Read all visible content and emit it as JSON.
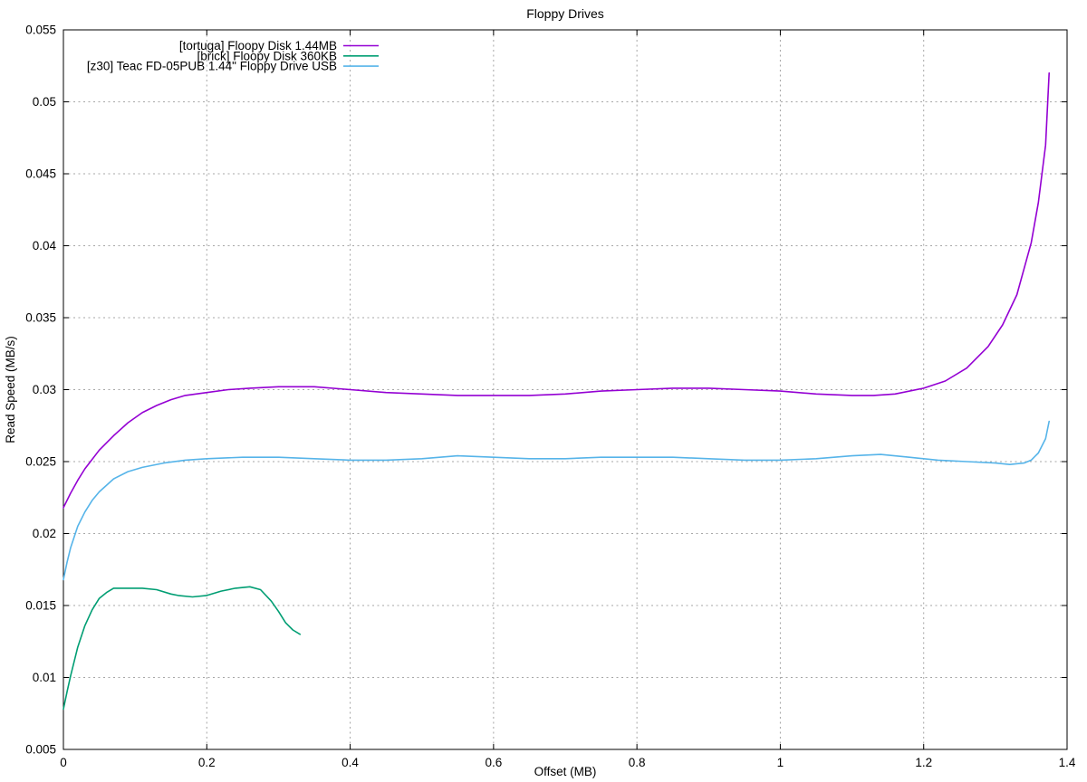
{
  "chart_data": {
    "type": "line",
    "title": "Floppy Drives",
    "xlabel": "Offset (MB)",
    "ylabel": "Read Speed (MB/s)",
    "xlim": [
      0,
      1.4
    ],
    "ylim": [
      0.005,
      0.055
    ],
    "grid": true,
    "legend_position": "inside-top-left, right-aligned text with line sample at right",
    "axis_color": "#000000",
    "grid_color": "#a6a6a6",
    "text_color": "#000000",
    "x_ticks": [
      {
        "v": 0,
        "label": "0"
      },
      {
        "v": 0.2,
        "label": "0.2"
      },
      {
        "v": 0.4,
        "label": "0.4"
      },
      {
        "v": 0.6,
        "label": "0.6"
      },
      {
        "v": 0.8,
        "label": "0.8"
      },
      {
        "v": 1,
        "label": "1"
      },
      {
        "v": 1.2,
        "label": "1.2"
      },
      {
        "v": 1.4,
        "label": "1.4"
      }
    ],
    "y_ticks": [
      {
        "v": 0.005,
        "label": "0.005"
      },
      {
        "v": 0.01,
        "label": "0.01"
      },
      {
        "v": 0.015,
        "label": "0.015"
      },
      {
        "v": 0.02,
        "label": "0.02"
      },
      {
        "v": 0.025,
        "label": "0.025"
      },
      {
        "v": 0.03,
        "label": "0.03"
      },
      {
        "v": 0.035,
        "label": "0.035"
      },
      {
        "v": 0.04,
        "label": "0.04"
      },
      {
        "v": 0.045,
        "label": "0.045"
      },
      {
        "v": 0.05,
        "label": "0.05"
      },
      {
        "v": 0.055,
        "label": "0.055"
      }
    ],
    "series": [
      {
        "id": "tortuga",
        "name": "[tortuga] Floopy Disk 1.44MB",
        "color": "#9400d3",
        "points": [
          [
            0,
            0.0218
          ],
          [
            0.01,
            0.0228
          ],
          [
            0.02,
            0.0237
          ],
          [
            0.03,
            0.0245
          ],
          [
            0.05,
            0.0258
          ],
          [
            0.07,
            0.0268
          ],
          [
            0.09,
            0.0277
          ],
          [
            0.11,
            0.0284
          ],
          [
            0.13,
            0.0289
          ],
          [
            0.15,
            0.0293
          ],
          [
            0.17,
            0.0296
          ],
          [
            0.2,
            0.0298
          ],
          [
            0.23,
            0.03
          ],
          [
            0.26,
            0.0301
          ],
          [
            0.3,
            0.0302
          ],
          [
            0.35,
            0.0302
          ],
          [
            0.4,
            0.03
          ],
          [
            0.45,
            0.0298
          ],
          [
            0.5,
            0.0297
          ],
          [
            0.55,
            0.0296
          ],
          [
            0.6,
            0.0296
          ],
          [
            0.65,
            0.0296
          ],
          [
            0.7,
            0.0297
          ],
          [
            0.75,
            0.0299
          ],
          [
            0.8,
            0.03
          ],
          [
            0.85,
            0.0301
          ],
          [
            0.9,
            0.0301
          ],
          [
            0.95,
            0.03
          ],
          [
            1,
            0.0299
          ],
          [
            1.05,
            0.0297
          ],
          [
            1.1,
            0.0296
          ],
          [
            1.13,
            0.0296
          ],
          [
            1.16,
            0.0297
          ],
          [
            1.2,
            0.0301
          ],
          [
            1.23,
            0.0306
          ],
          [
            1.26,
            0.0315
          ],
          [
            1.29,
            0.033
          ],
          [
            1.31,
            0.0345
          ],
          [
            1.33,
            0.0366
          ],
          [
            1.35,
            0.0402
          ],
          [
            1.36,
            0.043
          ],
          [
            1.37,
            0.047
          ],
          [
            1.375,
            0.052
          ]
        ]
      },
      {
        "id": "brick",
        "name": "[brick] Floopy Disk 360KB",
        "color": "#009e73",
        "points": [
          [
            0,
            0.0078
          ],
          [
            0.005,
            0.009
          ],
          [
            0.01,
            0.0101
          ],
          [
            0.02,
            0.0121
          ],
          [
            0.03,
            0.0136
          ],
          [
            0.04,
            0.0147
          ],
          [
            0.05,
            0.0155
          ],
          [
            0.06,
            0.0159
          ],
          [
            0.07,
            0.0162
          ],
          [
            0.09,
            0.0162
          ],
          [
            0.11,
            0.0162
          ],
          [
            0.13,
            0.0161
          ],
          [
            0.15,
            0.0158
          ],
          [
            0.16,
            0.0157
          ],
          [
            0.18,
            0.0156
          ],
          [
            0.2,
            0.0157
          ],
          [
            0.22,
            0.016
          ],
          [
            0.24,
            0.0162
          ],
          [
            0.26,
            0.0163
          ],
          [
            0.275,
            0.0161
          ],
          [
            0.29,
            0.0153
          ],
          [
            0.3,
            0.0146
          ],
          [
            0.31,
            0.0138
          ],
          [
            0.32,
            0.0133
          ],
          [
            0.33,
            0.013
          ]
        ]
      },
      {
        "id": "z30",
        "name": "[z30] Teac FD-05PUB 1.44\" Floppy Drive USB",
        "color": "#56b4e9",
        "points": [
          [
            0,
            0.0168
          ],
          [
            0.005,
            0.018
          ],
          [
            0.01,
            0.019
          ],
          [
            0.02,
            0.0205
          ],
          [
            0.03,
            0.0215
          ],
          [
            0.04,
            0.0223
          ],
          [
            0.05,
            0.0229
          ],
          [
            0.07,
            0.0238
          ],
          [
            0.09,
            0.0243
          ],
          [
            0.11,
            0.0246
          ],
          [
            0.14,
            0.0249
          ],
          [
            0.17,
            0.0251
          ],
          [
            0.2,
            0.0252
          ],
          [
            0.25,
            0.0253
          ],
          [
            0.3,
            0.0253
          ],
          [
            0.35,
            0.0252
          ],
          [
            0.4,
            0.0251
          ],
          [
            0.45,
            0.0251
          ],
          [
            0.5,
            0.0252
          ],
          [
            0.55,
            0.0254
          ],
          [
            0.6,
            0.0253
          ],
          [
            0.65,
            0.0252
          ],
          [
            0.7,
            0.0252
          ],
          [
            0.75,
            0.0253
          ],
          [
            0.8,
            0.0253
          ],
          [
            0.85,
            0.0253
          ],
          [
            0.9,
            0.0252
          ],
          [
            0.95,
            0.0251
          ],
          [
            1,
            0.0251
          ],
          [
            1.05,
            0.0252
          ],
          [
            1.1,
            0.0254
          ],
          [
            1.14,
            0.0255
          ],
          [
            1.18,
            0.0253
          ],
          [
            1.22,
            0.0251
          ],
          [
            1.26,
            0.025
          ],
          [
            1.3,
            0.0249
          ],
          [
            1.32,
            0.0248
          ],
          [
            1.34,
            0.0249
          ],
          [
            1.35,
            0.0251
          ],
          [
            1.36,
            0.0256
          ],
          [
            1.37,
            0.0266
          ],
          [
            1.375,
            0.0278
          ]
        ]
      }
    ]
  }
}
